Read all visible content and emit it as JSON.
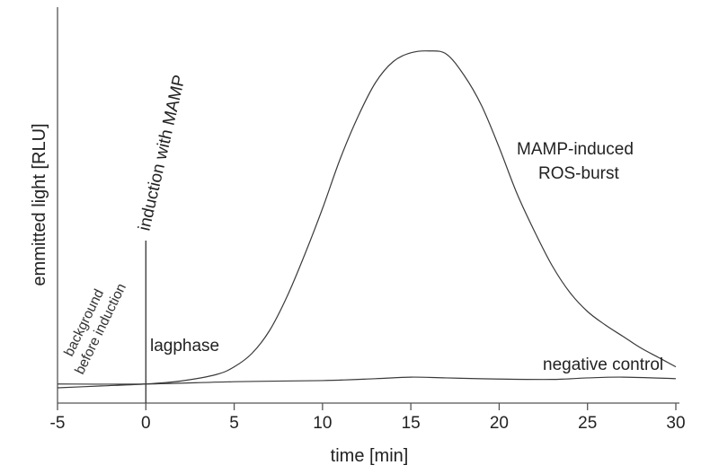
{
  "chart_data": {
    "type": "line",
    "xlabel": "time [min]",
    "ylabel": "emmitted light [RLU]",
    "xlim": [
      -5,
      30
    ],
    "ylim": [
      0,
      100
    ],
    "x_ticks": [
      -5,
      0,
      5,
      10,
      15,
      20,
      25,
      30
    ],
    "grid": false,
    "series": [
      {
        "name": "MAMP-induced ROS-burst",
        "x": [
          -5,
          -2.5,
          0,
          2,
          4,
          5,
          6,
          7,
          8,
          9,
          10,
          11,
          12,
          13,
          14,
          15,
          16,
          17,
          18,
          19,
          20,
          21,
          22,
          23,
          24,
          25,
          26,
          27,
          28,
          29,
          30
        ],
        "y": [
          4,
          4.5,
          5,
          5.8,
          7.5,
          9.5,
          13,
          19,
          28,
          39,
          51,
          64,
          75,
          84,
          89.5,
          91.8,
          92.3,
          91.5,
          86,
          78,
          67,
          55,
          45,
          36,
          29,
          24,
          20.5,
          17.5,
          14.5,
          12,
          9.5
        ]
      },
      {
        "name": "negative control",
        "x": [
          -5,
          0,
          5,
          10,
          13,
          15,
          17,
          20,
          23,
          25,
          27,
          30
        ],
        "y": [
          5,
          5,
          5.6,
          5.9,
          6.4,
          6.8,
          6.6,
          6.3,
          6.2,
          6.6,
          6.8,
          6.4
        ]
      }
    ],
    "annotations": {
      "induction": {
        "x": 0,
        "text": "induction with MAMP"
      },
      "background_line1": "background",
      "background_line2": "before induction",
      "lagphase": "lagphase",
      "burst_line1": "MAMP-induced",
      "burst_line2": "ROS-burst",
      "negative_control": "negative control"
    }
  }
}
